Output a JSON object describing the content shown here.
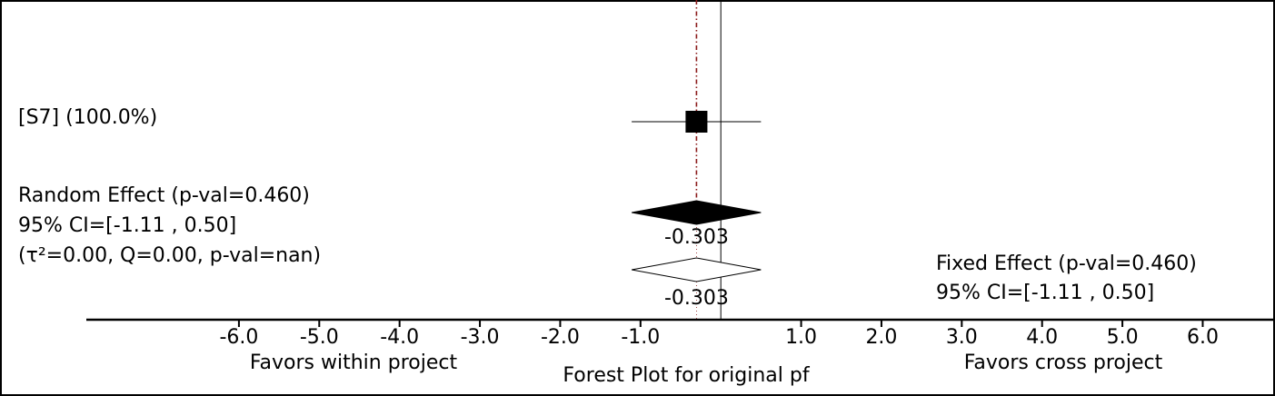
{
  "chart_data": {
    "type": "forest",
    "title": "Forest Plot for original pf",
    "xlabel_left": "Favors within project",
    "xlabel_right": "Favors cross project",
    "xlim": [
      -7.9,
      6.9
    ],
    "x_ticks": [
      {
        "value": -6.0,
        "label": "-6.0"
      },
      {
        "value": -5.0,
        "label": "-5.0"
      },
      {
        "value": -4.0,
        "label": "-4.0"
      },
      {
        "value": -3.0,
        "label": "-3.0"
      },
      {
        "value": -2.0,
        "label": "-2.0"
      },
      {
        "value": -1.0,
        "label": "-1.0"
      },
      {
        "value": 1.0,
        "label": "1.0"
      },
      {
        "value": 2.0,
        "label": "2.0"
      },
      {
        "value": 3.0,
        "label": "3.0"
      },
      {
        "value": 4.0,
        "label": "4.0"
      },
      {
        "value": 5.0,
        "label": "5.0"
      },
      {
        "value": 6.0,
        "label": "6.0"
      }
    ],
    "null_line": 0.0,
    "studies": [
      {
        "label": "[S7] (100.0%)",
        "effect": -0.303,
        "ci_low": -1.11,
        "ci_high": 0.5,
        "weight": 1.0
      }
    ],
    "random_effect": {
      "lines": [
        "Random Effect (p-val=0.460)",
        "95% CI=[-1.11 , 0.50]",
        "(τ²=0.00, Q=0.00, p-val=nan)"
      ],
      "effect": -0.303,
      "ci_low": -1.11,
      "ci_high": 0.5,
      "value_label": "-0.303"
    },
    "fixed_effect": {
      "lines": [
        "Fixed Effect (p-val=0.460)",
        "95% CI=[-1.11 , 0.50]"
      ],
      "effect": -0.303,
      "ci_low": -1.11,
      "ci_high": 0.5,
      "value_label": "-0.303"
    },
    "colors": {
      "axis": "#000000",
      "pooled_line": "#8b1a1a",
      "marker": "#000000"
    }
  }
}
